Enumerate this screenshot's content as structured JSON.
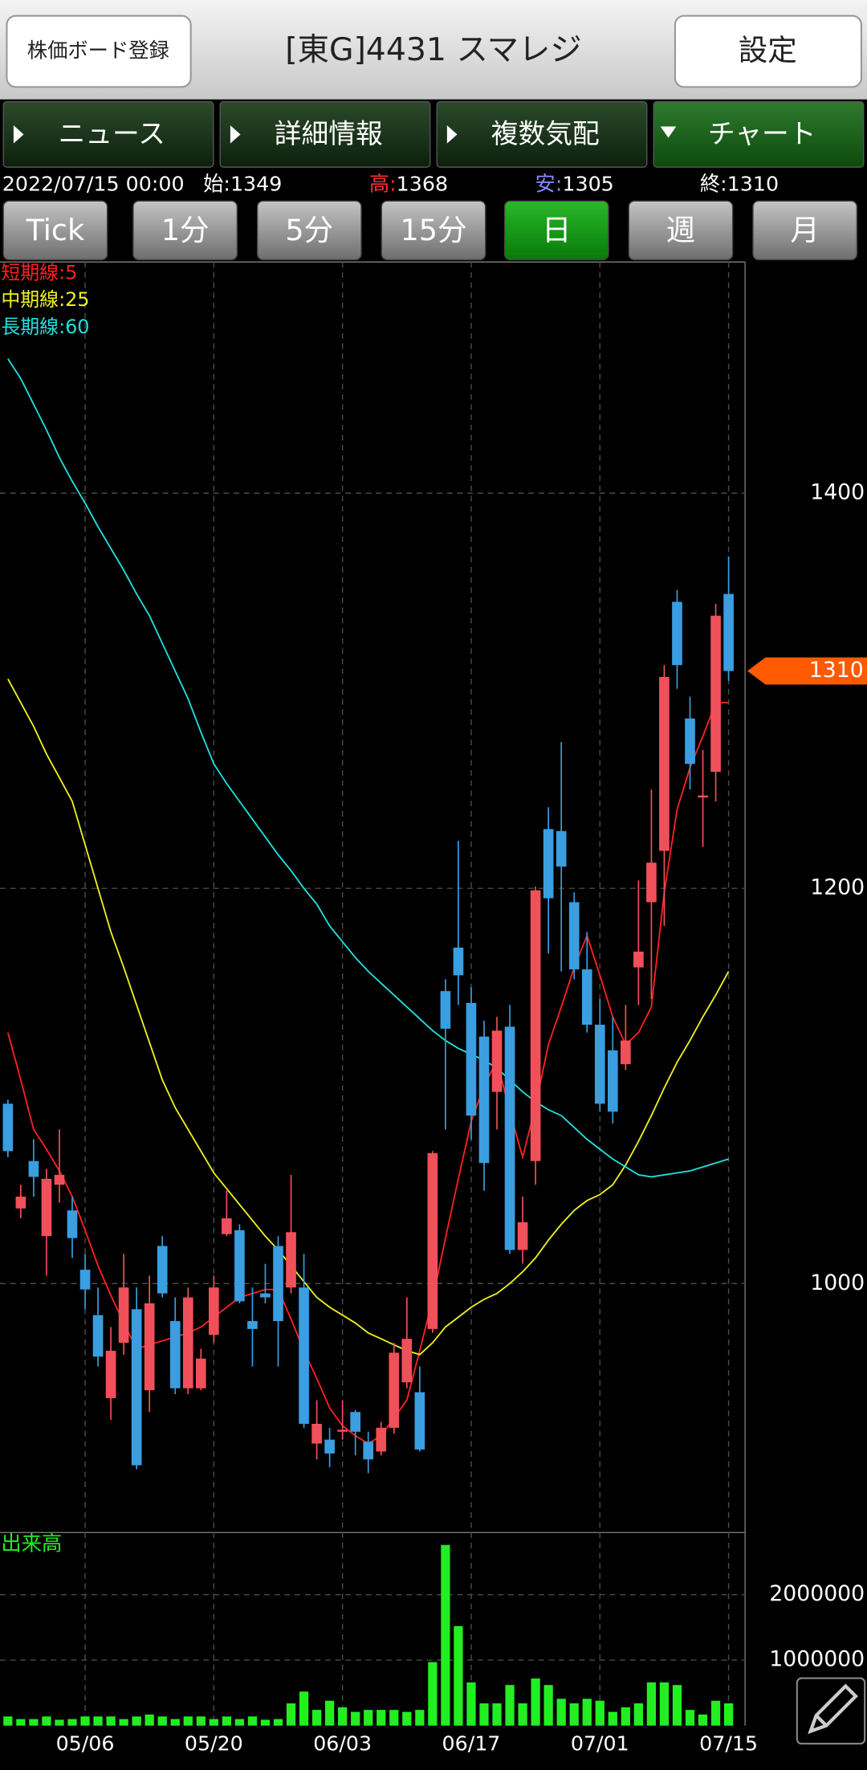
{
  "header": {
    "left_button": "株価ボード登録",
    "title": "[東G]4431 スマレジ",
    "right_button": "設定"
  },
  "tabs": [
    "ニュース",
    "詳細情報",
    "複数気配",
    "チャート"
  ],
  "active_tab": 3,
  "quote": {
    "datetime": "2022/07/15 00:00",
    "open_label": "始:",
    "open": 1349,
    "high_label": "高:",
    "high": 1368,
    "low_label": "安:",
    "low": 1305,
    "close_label": "終:",
    "close": 1310
  },
  "timeframes": [
    "Tick",
    "1分",
    "5分",
    "15分",
    "日",
    "週",
    "月"
  ],
  "selected_timeframe": 4,
  "chart_data": [
    {
      "type": "candlestick",
      "up_color": "#f0505a",
      "down_color": "#3a9ee0",
      "categories": [
        null,
        null,
        null,
        null,
        null,
        null,
        "05/06",
        null,
        null,
        null,
        null,
        null,
        null,
        null,
        null,
        null,
        "05/20",
        null,
        null,
        null,
        null,
        null,
        null,
        null,
        null,
        null,
        "06/03",
        null,
        null,
        null,
        null,
        null,
        null,
        null,
        null,
        null,
        "06/17",
        null,
        null,
        null,
        null,
        null,
        null,
        null,
        null,
        null,
        "07/01",
        null,
        null,
        null,
        null,
        null,
        null,
        null,
        null,
        null,
        "07/15"
      ],
      "open": [
        1091,
        1038,
        1062,
        1024,
        1050,
        1037,
        1007,
        984,
        942,
        970,
        987,
        946,
        1019,
        981,
        947,
        947,
        974,
        1025,
        1027,
        981,
        995,
        1019,
        998,
        998,
        919,
        921,
        925,
        935,
        920,
        915,
        927,
        950,
        945,
        977,
        1148,
        1170,
        1142,
        1125,
        1097,
        1130,
        1017,
        1062,
        1230,
        1229,
        1193,
        1159,
        1131,
        1118,
        1111,
        1160,
        1193,
        1219,
        1345,
        1286,
        1246,
        1259,
        1349
      ],
      "high": [
        1093,
        1050,
        1073,
        1058,
        1078,
        1044,
        1015,
        998,
        978,
        1015,
        998,
        1004,
        1024,
        993,
        998,
        967,
        1004,
        1047,
        1030,
        998,
        1010,
        1024,
        1055,
        1015,
        941,
        927,
        941,
        936,
        925,
        930,
        970,
        993,
        958,
        1067,
        1154,
        1224,
        1150,
        1133,
        1135,
        1141,
        1044,
        1201,
        1241,
        1274,
        1198,
        1178,
        1144,
        1135,
        1141,
        1204,
        1250,
        1313,
        1351,
        1297,
        1270,
        1344,
        1368
      ],
      "low": [
        1064,
        1033,
        1044,
        1004,
        1041,
        1013,
        987,
        958,
        931,
        964,
        906,
        935,
        993,
        944,
        944,
        946,
        970,
        1024,
        990,
        958,
        990,
        958,
        995,
        927,
        911,
        907,
        921,
        913,
        904,
        913,
        924,
        947,
        915,
        975,
        1078,
        1141,
        1073,
        1047,
        1078,
        1015,
        1010,
        1050,
        1167,
        1158,
        1154,
        1127,
        1087,
        1081,
        1108,
        1141,
        1144,
        1181,
        1301,
        1250,
        1221,
        1244,
        1305
      ],
      "close": [
        1067,
        1044,
        1054,
        1053,
        1055,
        1023,
        997,
        963,
        966,
        998,
        908,
        990,
        995,
        947,
        993,
        962,
        998,
        1033,
        991,
        977,
        993,
        981,
        1026,
        929,
        929,
        914,
        926,
        925,
        911,
        927,
        965,
        972,
        916,
        1066,
        1129,
        1156,
        1085,
        1061,
        1128,
        1017,
        1031,
        1199,
        1195,
        1211,
        1159,
        1131,
        1091,
        1087,
        1123,
        1168,
        1213,
        1307,
        1313,
        1263,
        1247,
        1338,
        1310
      ],
      "series": [
        {
          "name": "短期線:5",
          "color": "#ff2020",
          "values": [
            1127,
            1103,
            1078,
            1068,
            1057,
            1044,
            1027,
            1009,
            994,
            980,
            967,
            969,
            971,
            973,
            975,
            978,
            983,
            988,
            993,
            995,
            997,
            997,
            982,
            966,
            952,
            937,
            928,
            923,
            919,
            923,
            932,
            941,
            966,
            992,
            1023,
            1053,
            1082,
            1100,
            1113,
            1087,
            1064,
            1090,
            1121,
            1140,
            1160,
            1176,
            1156,
            1135,
            1121,
            1127,
            1140,
            1198,
            1240,
            1261,
            1277,
            1294,
            1294
          ]
        },
        {
          "name": "中期線:25",
          "color": "#f0f020",
          "values": [
            1306,
            1294,
            1282,
            1268,
            1256,
            1244,
            1222,
            1200,
            1178,
            1160,
            1141,
            1122,
            1103,
            1089,
            1078,
            1067,
            1056,
            1048,
            1040,
            1032,
            1024,
            1017,
            1009,
            1001,
            993,
            988,
            984,
            980,
            975,
            972,
            969,
            966,
            964,
            970,
            978,
            983,
            988,
            992,
            995,
            1000,
            1006,
            1013,
            1022,
            1030,
            1037,
            1042,
            1045,
            1050,
            1060,
            1072,
            1085,
            1099,
            1112,
            1123,
            1135,
            1146,
            1158
          ]
        },
        {
          "name": "長期線:60",
          "color": "#20e0e0",
          "values": [
            1468,
            1458,
            1445,
            1432,
            1418,
            1406,
            1395,
            1383,
            1372,
            1361,
            1349,
            1338,
            1324,
            1310,
            1296,
            1279,
            1263,
            1253,
            1244,
            1235,
            1226,
            1217,
            1209,
            1200,
            1192,
            1181,
            1173,
            1165,
            1158,
            1152,
            1146,
            1140,
            1134,
            1128,
            1123,
            1119,
            1116,
            1113,
            1109,
            1103,
            1097,
            1092,
            1088,
            1085,
            1079,
            1073,
            1068,
            1063,
            1059,
            1055,
            1054,
            1055,
            1056,
            1057,
            1059,
            1061,
            1063
          ]
        }
      ],
      "ylim": [
        874,
        1517
      ],
      "yticks": [
        1000,
        1200,
        1400
      ],
      "grid": true,
      "last_price_color": "#ff5a00"
    },
    {
      "type": "bar",
      "title": "出来高",
      "color": "#22ee22",
      "values": [
        140000,
        100000,
        100000,
        140000,
        90000,
        100000,
        140000,
        140000,
        140000,
        100000,
        140000,
        170000,
        140000,
        100000,
        140000,
        140000,
        100000,
        140000,
        100000,
        140000,
        90000,
        100000,
        340000,
        520000,
        240000,
        380000,
        280000,
        210000,
        240000,
        240000,
        240000,
        210000,
        240000,
        970000,
        2760000,
        1520000,
        660000,
        340000,
        340000,
        620000,
        340000,
        720000,
        620000,
        410000,
        340000,
        410000,
        380000,
        210000,
        280000,
        340000,
        660000,
        660000,
        620000,
        240000,
        170000,
        380000,
        340000
      ],
      "ylim": [
        0,
        2950000
      ],
      "yticks": [
        1000000,
        2000000
      ],
      "grid": true
    }
  ]
}
